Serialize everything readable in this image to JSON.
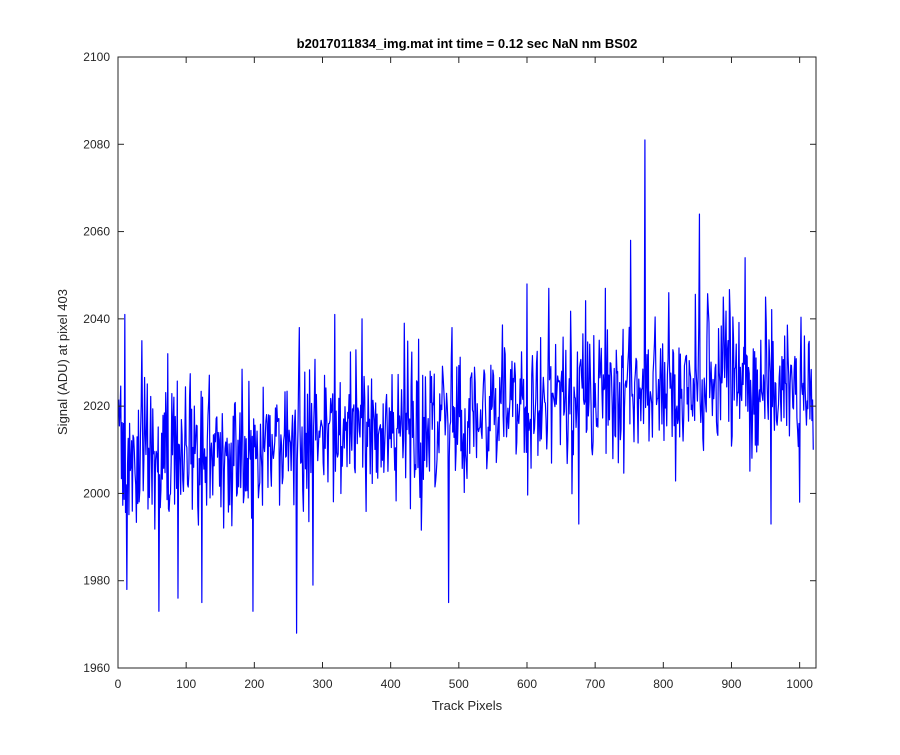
{
  "chart_data": {
    "type": "line",
    "title": "b2017011834_img.mat int time = 0.12 sec  NaN nm BS02",
    "xlabel": "Track Pixels",
    "ylabel": "Signal (ADU) at pixel 403",
    "xlim": [
      0,
      1024
    ],
    "ylim": [
      1960,
      2100
    ],
    "xticks": [
      0,
      100,
      200,
      300,
      400,
      500,
      600,
      700,
      800,
      900,
      1000
    ],
    "yticks": [
      1960,
      1980,
      2000,
      2020,
      2040,
      2060,
      2080,
      2100
    ],
    "grid": false,
    "legend": "none",
    "series": [
      {
        "color": "#0000ff",
        "x": [
          1,
          15,
          30,
          45,
          60,
          75,
          90,
          105,
          120,
          135,
          150,
          165,
          180,
          195,
          210,
          225,
          240,
          255,
          270,
          285,
          300,
          315,
          330,
          345,
          360,
          375,
          390,
          405,
          420,
          435,
          450,
          465,
          480,
          495,
          510,
          525,
          540,
          555,
          570,
          585,
          600,
          615,
          630,
          645,
          660,
          675,
          690,
          705,
          720,
          735,
          750,
          765,
          780,
          795,
          810,
          825,
          840,
          855,
          870,
          885,
          900,
          915,
          930,
          945,
          960,
          975,
          990,
          1005,
          1020
        ],
        "values": [
          2009,
          2009,
          2008,
          2007,
          2007,
          2007,
          2008,
          2008,
          2009,
          2009,
          2009,
          2010,
          2010,
          2010,
          2010,
          2011,
          2011,
          2012,
          2012,
          2012,
          2013,
          2013,
          2014,
          2014,
          2014,
          2014,
          2014,
          2015,
          2015,
          2015,
          2015,
          2016,
          2016,
          2016,
          2016,
          2017,
          2017,
          2018,
          2018,
          2019,
          2020,
          2020,
          2021,
          2021,
          2021,
          2022,
          2022,
          2023,
          2023,
          2023,
          2024,
          2024,
          2025,
          2025,
          2025,
          2025,
          2025,
          2025,
          2026,
          2026,
          2025,
          2025,
          2024,
          2024,
          2024,
          2023,
          2023,
          2022,
          2022
        ],
        "noise_std": 8,
        "spikes": [
          {
            "x": 10,
            "y": 2041
          },
          {
            "x": 13,
            "y": 1978
          },
          {
            "x": 35,
            "y": 2035
          },
          {
            "x": 60,
            "y": 1973
          },
          {
            "x": 73,
            "y": 2032
          },
          {
            "x": 88,
            "y": 1976
          },
          {
            "x": 112,
            "y": 2020
          },
          {
            "x": 123,
            "y": 1975
          },
          {
            "x": 198,
            "y": 2038
          },
          {
            "x": 198,
            "y": 1973
          },
          {
            "x": 262,
            "y": 1968
          },
          {
            "x": 266,
            "y": 2038
          },
          {
            "x": 286,
            "y": 1979
          },
          {
            "x": 318,
            "y": 2041
          },
          {
            "x": 358,
            "y": 2040
          },
          {
            "x": 420,
            "y": 2039
          },
          {
            "x": 485,
            "y": 1975
          },
          {
            "x": 490,
            "y": 2038
          },
          {
            "x": 600,
            "y": 2048
          },
          {
            "x": 632,
            "y": 2047
          },
          {
            "x": 676,
            "y": 1993
          },
          {
            "x": 715,
            "y": 2047
          },
          {
            "x": 752,
            "y": 2058
          },
          {
            "x": 773,
            "y": 2081
          },
          {
            "x": 808,
            "y": 2046
          },
          {
            "x": 853,
            "y": 2064
          },
          {
            "x": 888,
            "y": 2045
          },
          {
            "x": 920,
            "y": 2054
          },
          {
            "x": 950,
            "y": 2045
          },
          {
            "x": 958,
            "y": 1993
          },
          {
            "x": 1000,
            "y": 1998
          },
          {
            "x": 1020,
            "y": 2010
          }
        ]
      }
    ]
  }
}
